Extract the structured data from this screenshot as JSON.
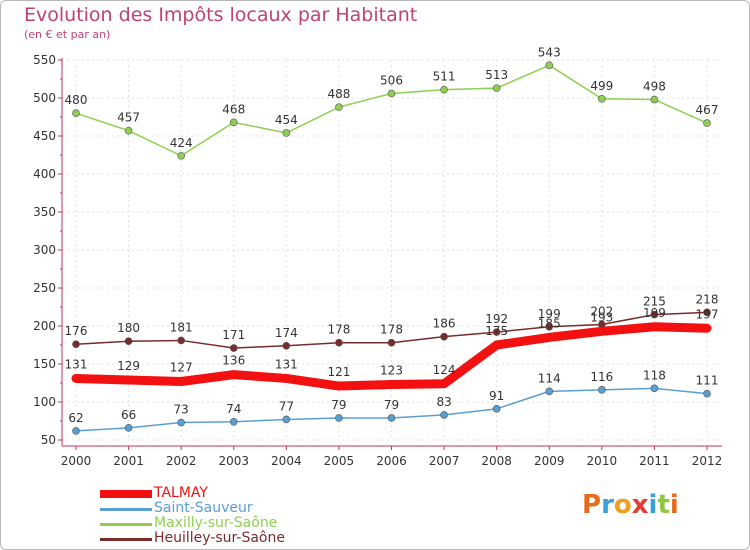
{
  "chart_data": {
    "type": "line",
    "title": "Evolution des Impôts locaux par Habitant",
    "subtitle": "(en € et par an)",
    "xlabel": "",
    "ylabel": "",
    "ylim": [
      50,
      550
    ],
    "yticks": [
      "50",
      "100",
      "150",
      "200",
      "250",
      "300",
      "350",
      "400",
      "450",
      "500",
      "550"
    ],
    "categories": [
      "2000",
      "2001",
      "2002",
      "2003",
      "2004",
      "2005",
      "2006",
      "2007",
      "2008",
      "2009",
      "2010",
      "2011",
      "2012"
    ],
    "grid": true,
    "legend_position": "bottom-left",
    "series": [
      {
        "name": "Maxilly-sur-Saône",
        "color": "#8fce52",
        "labels_above": true,
        "values": [
          480,
          457,
          424,
          468,
          454,
          488,
          506,
          511,
          513,
          543,
          499,
          498,
          467
        ]
      },
      {
        "name": "Heuilley-sur-Saône",
        "color": "#7a2b2b",
        "labels_above": true,
        "values": [
          176,
          180,
          181,
          171,
          174,
          178,
          178,
          186,
          192,
          199,
          202,
          215,
          218
        ]
      },
      {
        "name": "TALMAY",
        "color": "#f21010",
        "thick": true,
        "labels_above": true,
        "values": [
          131,
          129,
          127,
          136,
          131,
          121,
          123,
          124,
          175,
          185,
          193,
          199,
          197
        ]
      },
      {
        "name": "Saint-Sauveur",
        "color": "#5a9fd4",
        "labels_above": true,
        "values": [
          62,
          66,
          73,
          74,
          77,
          79,
          79,
          83,
          91,
          114,
          116,
          118,
          111
        ]
      }
    ]
  },
  "legend": [
    {
      "label": "TALMAY",
      "color": "#f21010"
    },
    {
      "label": "Saint-Sauveur",
      "color": "#5a9fd4"
    },
    {
      "label": "Maxilly-sur-Saône",
      "color": "#8fce52"
    },
    {
      "label": "Heuilley-sur-Saône",
      "color": "#7a2b2b"
    }
  ],
  "brand": {
    "name": "Proxiti",
    "letters": [
      {
        "ch": "P",
        "color": "#e86a1a"
      },
      {
        "ch": "r",
        "color": "#3aa0d8"
      },
      {
        "ch": "o",
        "color": "#f0a020"
      },
      {
        "ch": "x",
        "color": "#e83a30"
      },
      {
        "ch": "i",
        "color": "#3aa0d8"
      },
      {
        "ch": "t",
        "color": "#8ec63f"
      },
      {
        "ch": "i",
        "color": "#e86a1a"
      }
    ]
  }
}
